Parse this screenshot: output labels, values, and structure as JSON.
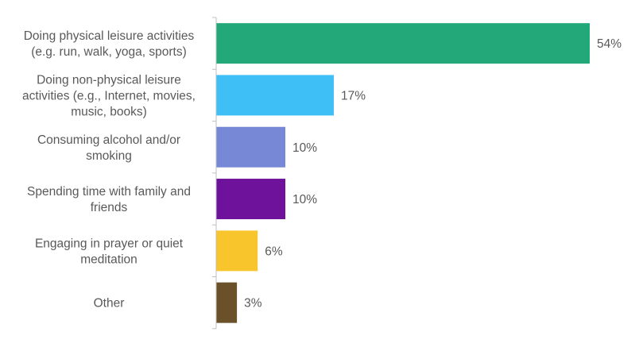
{
  "chart_data": {
    "type": "bar",
    "orientation": "horizontal",
    "categories": [
      [
        "Doing physical leisure activities",
        "(e.g. run, walk, yoga, sports)"
      ],
      [
        "Doing non-physical leisure",
        "activities (e.g., Internet, movies,",
        "music, books)"
      ],
      [
        "Consuming alcohol and/or",
        "smoking"
      ],
      [
        "Spending time with family and",
        "friends"
      ],
      [
        "Engaging in prayer or quiet",
        "meditation"
      ],
      [
        "Other"
      ]
    ],
    "values": [
      54,
      17,
      10,
      10,
      6,
      3
    ],
    "value_labels": [
      "54%",
      "17%",
      "10%",
      "10%",
      "6%",
      "3%"
    ],
    "colors": [
      "#23A879",
      "#3EC0F7",
      "#7789D6",
      "#6F129B",
      "#F8C52D",
      "#6B5129"
    ],
    "xlim": [
      0,
      57
    ],
    "gridlines": false,
    "legend": "none"
  }
}
